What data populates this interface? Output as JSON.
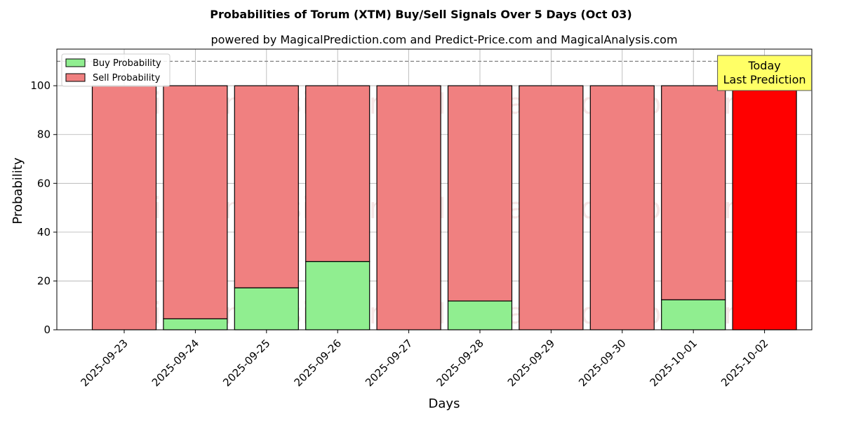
{
  "chart_data": {
    "type": "bar",
    "stacked": true,
    "title": "Probabilities of Torum (XTM) Buy/Sell Signals Over 5 Days (Oct 03)",
    "subtitle": "powered by MagicalPrediction.com and Predict-Price.com and MagicalAnalysis.com",
    "xlabel": "Days",
    "ylabel": "Probability",
    "ylim": [
      0,
      115
    ],
    "yticks": [
      0,
      20,
      40,
      60,
      80,
      100
    ],
    "grid": true,
    "legend_position": "top-left",
    "categories": [
      "2025-09-23",
      "2025-09-24",
      "2025-09-25",
      "2025-09-26",
      "2025-09-27",
      "2025-09-28",
      "2025-09-29",
      "2025-09-30",
      "2025-10-01",
      "2025-10-02"
    ],
    "series": [
      {
        "name": "Buy Probability",
        "color": "#90ee90",
        "values": [
          0,
          4.5,
          17.2,
          28.0,
          0,
          11.8,
          0,
          0,
          12.3,
          0
        ]
      },
      {
        "name": "Sell Probability",
        "color": "#f08080",
        "values": [
          100,
          95.5,
          82.8,
          72.0,
          100,
          88.2,
          100,
          100,
          87.7,
          100
        ]
      }
    ],
    "highlight": {
      "index": 9,
      "color": "#ff0000"
    },
    "reference_line": {
      "y": 110,
      "style": "dashed",
      "color": "#808080"
    },
    "annotation": {
      "lines": [
        "Today",
        "Last Prediction"
      ],
      "background": "#ffff66",
      "category_index": 9
    },
    "watermarks": [
      "MagicalAnalysis.com",
      "MagicalPrediction.com"
    ]
  }
}
